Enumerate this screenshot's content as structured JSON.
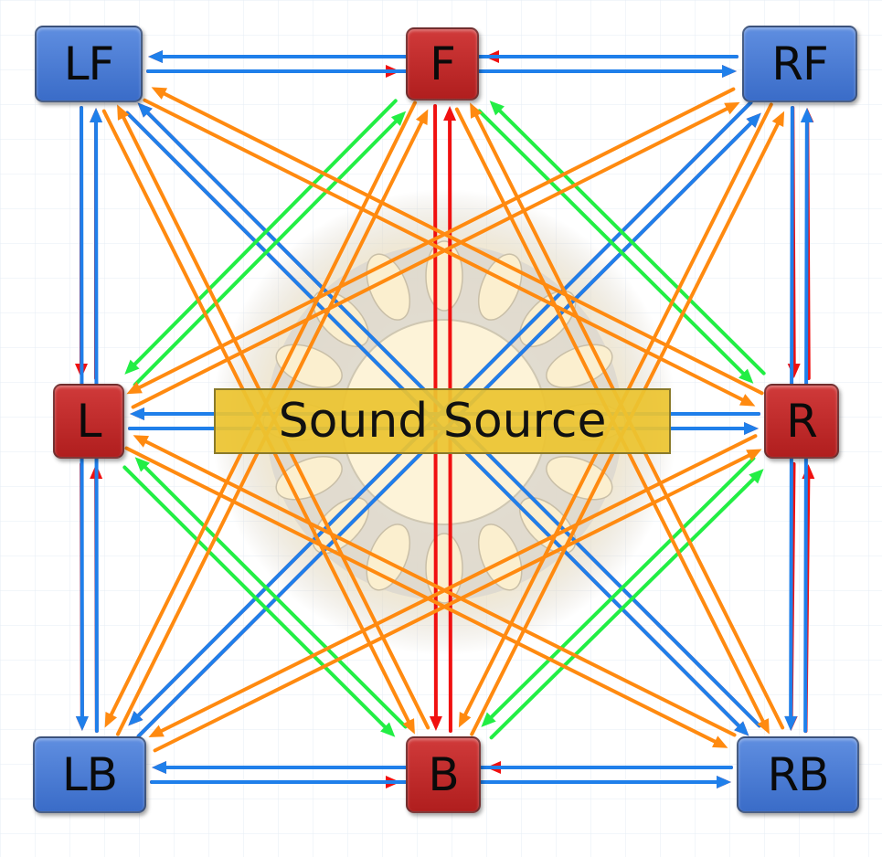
{
  "source": {
    "label": "Sound Source"
  },
  "nodes": {
    "LF": {
      "label": "LF",
      "kind": "speaker"
    },
    "F": {
      "label": "F",
      "kind": "center"
    },
    "RF": {
      "label": "RF",
      "kind": "speaker"
    },
    "L": {
      "label": "L",
      "kind": "center"
    },
    "R": {
      "label": "R",
      "kind": "center"
    },
    "LB": {
      "label": "LB",
      "kind": "speaker"
    },
    "B": {
      "label": "B",
      "kind": "center"
    },
    "RB": {
      "label": "RB",
      "kind": "speaker"
    }
  },
  "colors": {
    "speaker": "#4a7fd6",
    "center": "#c02828",
    "source_label_bg": "#ecc430",
    "arrow_red": "#f01010",
    "arrow_blue": "#1f7fea",
    "arrow_green": "#22ee44",
    "arrow_orange": "#ff8a10"
  },
  "connections": [
    {
      "from": "LF",
      "to": "F",
      "color": "red"
    },
    {
      "from": "F",
      "to": "LF",
      "color": "red"
    },
    {
      "from": "F",
      "to": "RF",
      "color": "red"
    },
    {
      "from": "RF",
      "to": "F",
      "color": "red"
    },
    {
      "from": "LB",
      "to": "B",
      "color": "red"
    },
    {
      "from": "B",
      "to": "LB",
      "color": "red"
    },
    {
      "from": "B",
      "to": "RB",
      "color": "red"
    },
    {
      "from": "RB",
      "to": "B",
      "color": "red"
    },
    {
      "from": "LF",
      "to": "L",
      "color": "red"
    },
    {
      "from": "L",
      "to": "LF",
      "color": "red"
    },
    {
      "from": "L",
      "to": "LB",
      "color": "red"
    },
    {
      "from": "LB",
      "to": "L",
      "color": "red"
    },
    {
      "from": "RF",
      "to": "R",
      "color": "red"
    },
    {
      "from": "R",
      "to": "RF",
      "color": "red"
    },
    {
      "from": "R",
      "to": "RB",
      "color": "red"
    },
    {
      "from": "RB",
      "to": "R",
      "color": "red"
    },
    {
      "from": "L",
      "to": "R",
      "color": "red"
    },
    {
      "from": "R",
      "to": "L",
      "color": "red"
    },
    {
      "from": "F",
      "to": "B",
      "color": "red"
    },
    {
      "from": "B",
      "to": "F",
      "color": "red"
    },
    {
      "from": "LF",
      "to": "RB",
      "color": "red"
    },
    {
      "from": "RB",
      "to": "LF",
      "color": "red"
    },
    {
      "from": "RF",
      "to": "LB",
      "color": "red"
    },
    {
      "from": "LB",
      "to": "RF",
      "color": "red"
    },
    {
      "from": "RF",
      "to": "LF",
      "color": "blue"
    },
    {
      "from": "LF",
      "to": "RF",
      "color": "blue"
    },
    {
      "from": "LB",
      "to": "RB",
      "color": "blue"
    },
    {
      "from": "RB",
      "to": "LB",
      "color": "blue"
    },
    {
      "from": "LF",
      "to": "LB",
      "color": "blue"
    },
    {
      "from": "LB",
      "to": "LF",
      "color": "blue"
    },
    {
      "from": "RF",
      "to": "RB",
      "color": "blue"
    },
    {
      "from": "RB",
      "to": "RF",
      "color": "blue"
    },
    {
      "from": "L",
      "to": "R",
      "color": "blue"
    },
    {
      "from": "R",
      "to": "L",
      "color": "blue"
    },
    {
      "from": "LF",
      "to": "RB",
      "color": "blue"
    },
    {
      "from": "RB",
      "to": "LF",
      "color": "blue"
    },
    {
      "from": "RF",
      "to": "LB",
      "color": "blue"
    },
    {
      "from": "LB",
      "to": "RF",
      "color": "blue"
    },
    {
      "from": "F",
      "to": "L",
      "color": "green"
    },
    {
      "from": "L",
      "to": "F",
      "color": "green"
    },
    {
      "from": "F",
      "to": "R",
      "color": "green"
    },
    {
      "from": "R",
      "to": "F",
      "color": "green"
    },
    {
      "from": "L",
      "to": "B",
      "color": "green"
    },
    {
      "from": "B",
      "to": "L",
      "color": "green"
    },
    {
      "from": "R",
      "to": "B",
      "color": "green"
    },
    {
      "from": "B",
      "to": "R",
      "color": "green"
    },
    {
      "from": "LF",
      "to": "R",
      "color": "orange"
    },
    {
      "from": "R",
      "to": "LF",
      "color": "orange"
    },
    {
      "from": "LF",
      "to": "B",
      "color": "orange"
    },
    {
      "from": "B",
      "to": "LF",
      "color": "orange"
    },
    {
      "from": "RF",
      "to": "L",
      "color": "orange"
    },
    {
      "from": "L",
      "to": "RF",
      "color": "orange"
    },
    {
      "from": "RF",
      "to": "B",
      "color": "orange"
    },
    {
      "from": "B",
      "to": "RF",
      "color": "orange"
    },
    {
      "from": "LB",
      "to": "F",
      "color": "orange"
    },
    {
      "from": "F",
      "to": "LB",
      "color": "orange"
    },
    {
      "from": "LB",
      "to": "R",
      "color": "orange"
    },
    {
      "from": "R",
      "to": "LB",
      "color": "orange"
    },
    {
      "from": "RB",
      "to": "F",
      "color": "orange"
    },
    {
      "from": "F",
      "to": "RB",
      "color": "orange"
    },
    {
      "from": "RB",
      "to": "L",
      "color": "orange"
    },
    {
      "from": "L",
      "to": "RB",
      "color": "orange"
    }
  ]
}
